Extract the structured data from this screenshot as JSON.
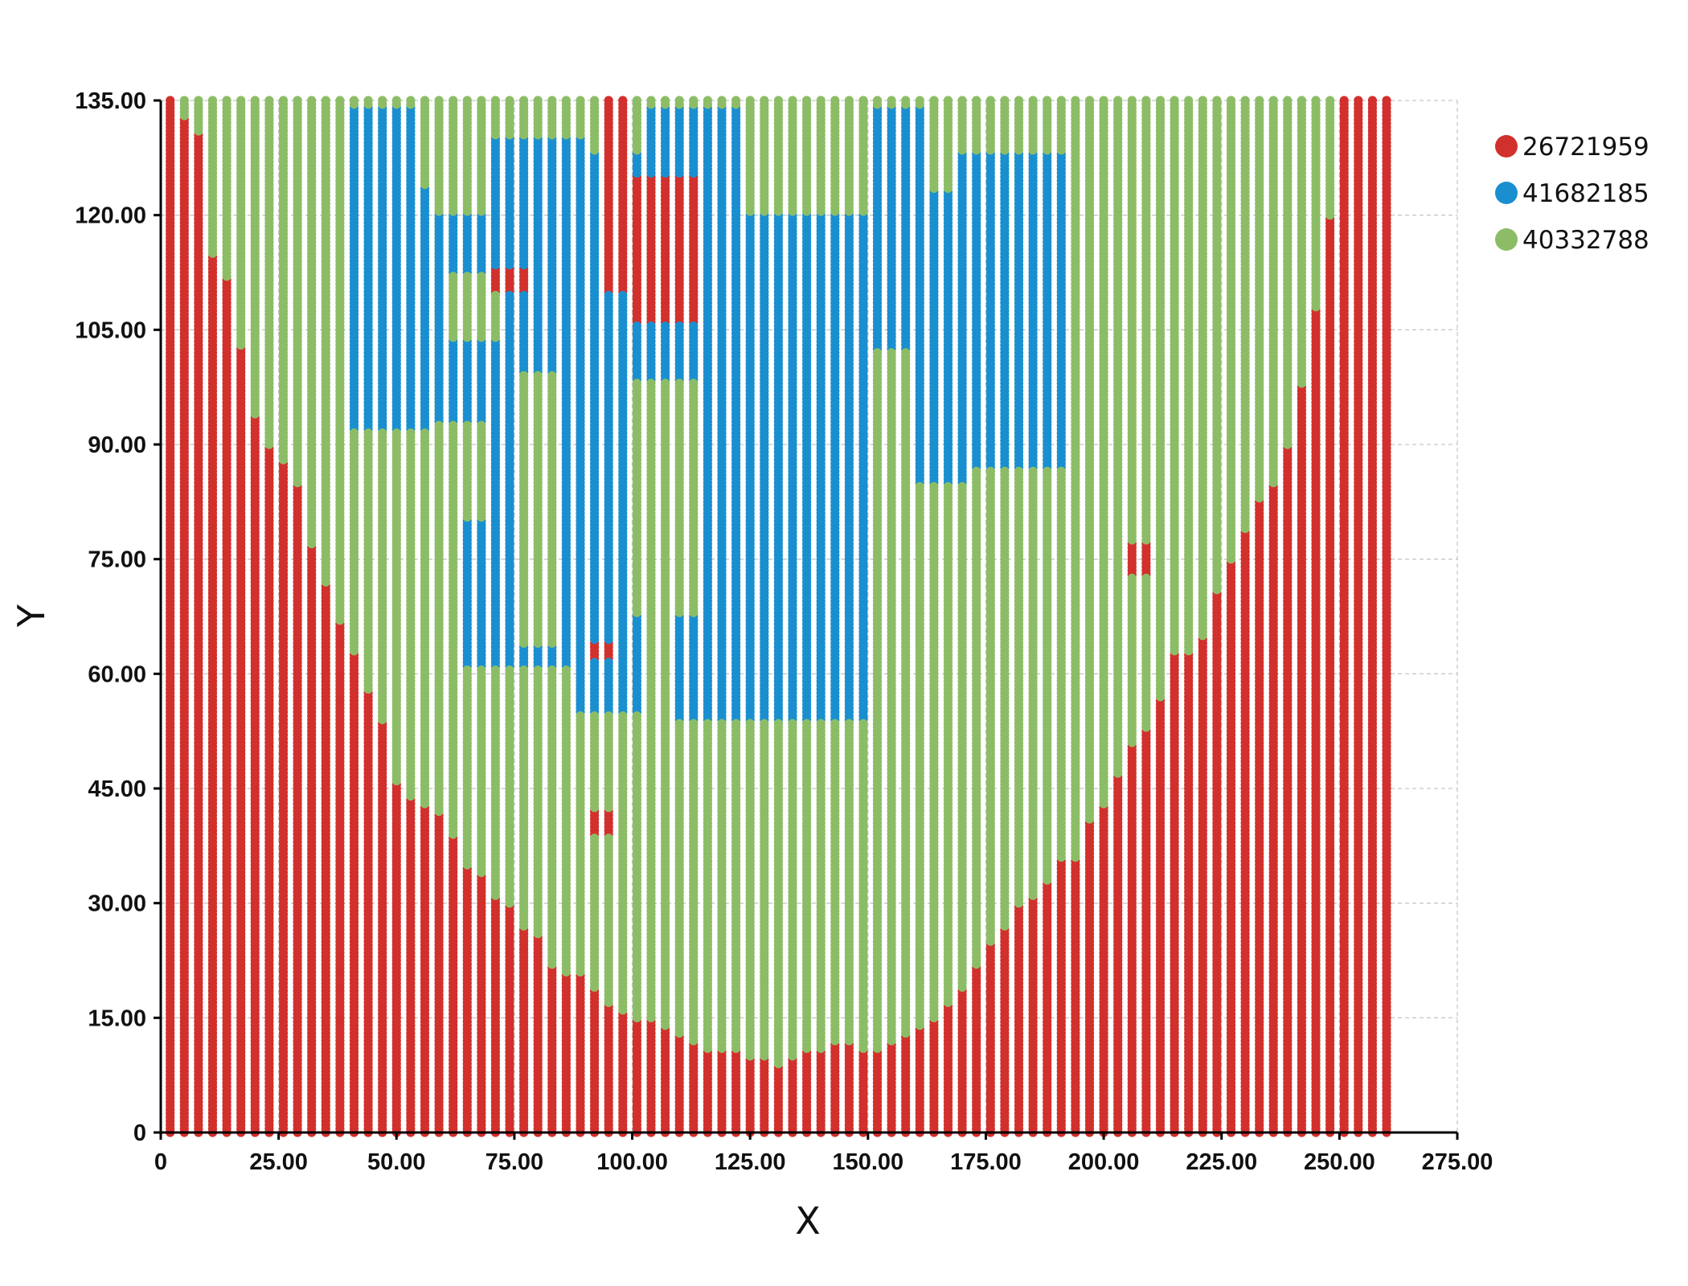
{
  "chart_data": {
    "type": "scatter",
    "xlabel": "X",
    "ylabel": "Y",
    "xlim": [
      0,
      275
    ],
    "ylim": [
      0,
      135
    ],
    "x_ticks": [
      "0",
      "25.00",
      "50.00",
      "75.00",
      "100.00",
      "125.00",
      "150.00",
      "175.00",
      "200.00",
      "225.00",
      "250.00",
      "275.00"
    ],
    "y_ticks": [
      "0",
      "15.00",
      "30.00",
      "45.00",
      "60.00",
      "75.00",
      "90.00",
      "105.00",
      "120.00",
      "135.00"
    ],
    "grid": "dashed, horizontal and vertical at ticks",
    "legend_position": "top-right",
    "series": [
      {
        "name": "26721959",
        "color": "#d2302c"
      },
      {
        "name": "41682185",
        "color": "#1a8fd0"
      },
      {
        "name": "40332788",
        "color": "#8cbd66"
      }
    ],
    "grid_sampling": {
      "x_start": 2,
      "x_step": 3,
      "x_end": 260,
      "y_start": 0,
      "y_step": 0.5,
      "y_end": 135
    },
    "red_lower_boundary": [
      [
        2,
        135
      ],
      [
        8,
        131
      ],
      [
        11,
        115
      ],
      [
        14,
        112
      ],
      [
        17,
        103
      ],
      [
        20,
        94
      ],
      [
        23,
        90
      ],
      [
        26,
        88
      ],
      [
        29,
        85
      ],
      [
        32,
        77
      ],
      [
        35,
        72
      ],
      [
        38,
        67
      ],
      [
        41,
        63
      ],
      [
        44,
        58
      ],
      [
        47,
        54
      ],
      [
        50,
        46
      ],
      [
        53,
        44
      ],
      [
        56,
        43
      ],
      [
        59,
        42
      ],
      [
        62,
        39
      ],
      [
        65,
        35
      ],
      [
        68,
        34
      ],
      [
        71,
        31
      ],
      [
        74,
        30
      ],
      [
        77,
        27
      ],
      [
        80,
        26
      ],
      [
        83,
        22
      ],
      [
        86,
        21
      ],
      [
        89,
        21
      ],
      [
        92,
        19
      ],
      [
        95,
        17
      ],
      [
        98,
        16
      ],
      [
        101,
        15
      ],
      [
        104,
        15
      ],
      [
        107,
        14
      ],
      [
        110,
        13
      ],
      [
        113,
        12
      ],
      [
        116,
        11
      ],
      [
        119,
        11
      ],
      [
        122,
        11
      ],
      [
        125,
        10
      ],
      [
        128,
        10
      ],
      [
        131,
        9
      ],
      [
        134,
        10
      ],
      [
        137,
        11
      ],
      [
        140,
        11
      ],
      [
        143,
        12
      ],
      [
        146,
        12
      ],
      [
        149,
        11
      ],
      [
        152,
        11
      ],
      [
        155,
        12
      ],
      [
        158,
        13
      ],
      [
        161,
        14
      ],
      [
        164,
        15
      ],
      [
        167,
        17
      ],
      [
        170,
        19
      ],
      [
        173,
        22
      ],
      [
        176,
        25
      ],
      [
        179,
        27
      ],
      [
        182,
        30
      ],
      [
        185,
        31
      ],
      [
        188,
        33
      ],
      [
        191,
        36
      ],
      [
        194,
        36
      ],
      [
        197,
        41
      ],
      [
        200,
        43
      ],
      [
        203,
        47
      ],
      [
        206,
        51
      ],
      [
        209,
        53
      ],
      [
        212,
        57
      ],
      [
        215,
        63
      ],
      [
        218,
        63
      ],
      [
        221,
        65
      ],
      [
        224,
        71
      ],
      [
        227,
        75
      ],
      [
        230,
        79
      ],
      [
        233,
        83
      ],
      [
        236,
        85
      ],
      [
        239,
        90
      ],
      [
        242,
        98
      ],
      [
        245,
        108
      ],
      [
        248,
        120
      ],
      [
        251,
        129
      ],
      [
        254,
        135
      ]
    ],
    "blue_regions": [
      {
        "x": [
          41,
          56
        ],
        "y": [
          92,
          134
        ]
      },
      {
        "x": [
          56,
          71
        ],
        "y": [
          93,
          120
        ]
      },
      {
        "x": [
          71,
          90
        ],
        "y": [
          80,
          130
        ]
      },
      {
        "x": [
          65,
          87
        ],
        "y": [
          61,
          80
        ]
      },
      {
        "x": [
          87,
          102
        ],
        "y": [
          55,
          128
        ]
      },
      {
        "x": [
          110,
          150
        ],
        "y": [
          54,
          120
        ]
      },
      {
        "x": [
          102,
          122
        ],
        "y": [
          82,
          134
        ]
      },
      {
        "x": [
          150,
          170
        ],
        "y": [
          85,
          123
        ]
      },
      {
        "x": [
          170,
          192
        ],
        "y": [
          87,
          128
        ]
      },
      {
        "x": [
          151,
          162
        ],
        "y": [
          123,
          134
        ]
      }
    ],
    "green_islands": [
      {
        "x": [
          75,
          85
        ],
        "y": [
          64,
          99
        ]
      },
      {
        "x": [
          100,
          115
        ],
        "y": [
          68,
          98
        ]
      },
      {
        "x": [
          150,
          160
        ],
        "y": [
          74,
          102
        ]
      },
      {
        "x": [
          62,
          73
        ],
        "y": [
          104,
          112
        ]
      },
      {
        "x": [
          56,
          67
        ],
        "y": [
          124,
          134
        ]
      }
    ],
    "red_patches": [
      {
        "x": [
          93,
          100
        ],
        "y": [
          110,
          135
        ]
      },
      {
        "x": [
          100,
          115
        ],
        "y": [
          106,
          125
        ]
      },
      {
        "x": [
          70,
          78
        ],
        "y": [
          110,
          113
        ]
      },
      {
        "x": [
          92,
          97
        ],
        "y": [
          62,
          64
        ]
      },
      {
        "x": [
          92,
          97
        ],
        "y": [
          39,
          42
        ]
      },
      {
        "x": [
          206,
          210
        ],
        "y": [
          73,
          77
        ]
      }
    ]
  }
}
